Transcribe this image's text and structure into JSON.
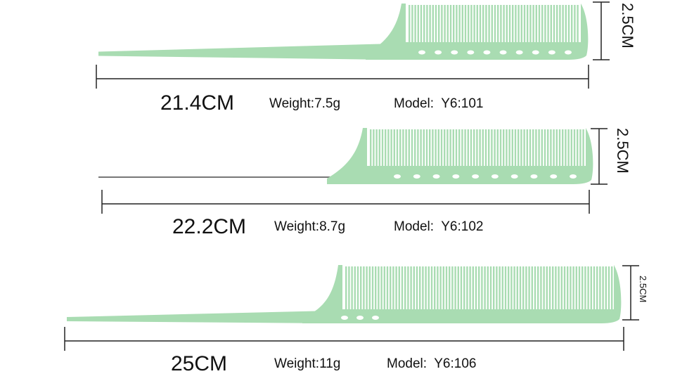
{
  "comb_color": "#a9dcb2",
  "combs": [
    {
      "length": "21.4CM",
      "weight": "Weight:7.5g",
      "model": "Model:  Y6:101",
      "height": "2.5CM",
      "tail": "plastic"
    },
    {
      "length": "22.2CM",
      "weight": "Weight:8.7g",
      "model": "Model:  Y6:102",
      "height": "2.5CM",
      "tail": "metal-pin"
    },
    {
      "length": "25CM",
      "weight": "Weight:11g",
      "model": "Model:  Y6:106",
      "height": "2.5CM",
      "tail": "plastic"
    }
  ]
}
